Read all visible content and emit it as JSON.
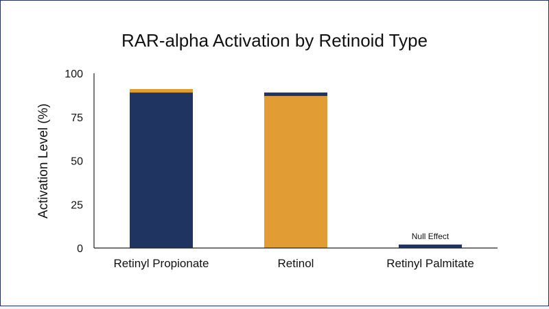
{
  "chart_data": {
    "type": "bar",
    "title": "RAR-alpha Activation by Retinoid Type",
    "xlabel": "",
    "ylabel": "Activation Level (%)",
    "ylim": [
      0,
      100
    ],
    "yticks": [
      0,
      25,
      50,
      75,
      100
    ],
    "categories": [
      "Retinyl Propionate",
      "Retinol",
      "Retinyl Palmitate"
    ],
    "series": [
      {
        "color": "#1f3460",
        "values": [
          89,
          2,
          2
        ]
      },
      {
        "color": "#e29c34",
        "values": [
          2,
          87,
          0
        ]
      }
    ],
    "stack_order": [
      [
        0,
        1
      ],
      [
        1,
        0
      ],
      [
        0,
        1
      ]
    ],
    "annotations": [
      {
        "category": "Retinyl Palmitate",
        "text": "Null Effect"
      }
    ],
    "grid": false,
    "legend": "none"
  }
}
